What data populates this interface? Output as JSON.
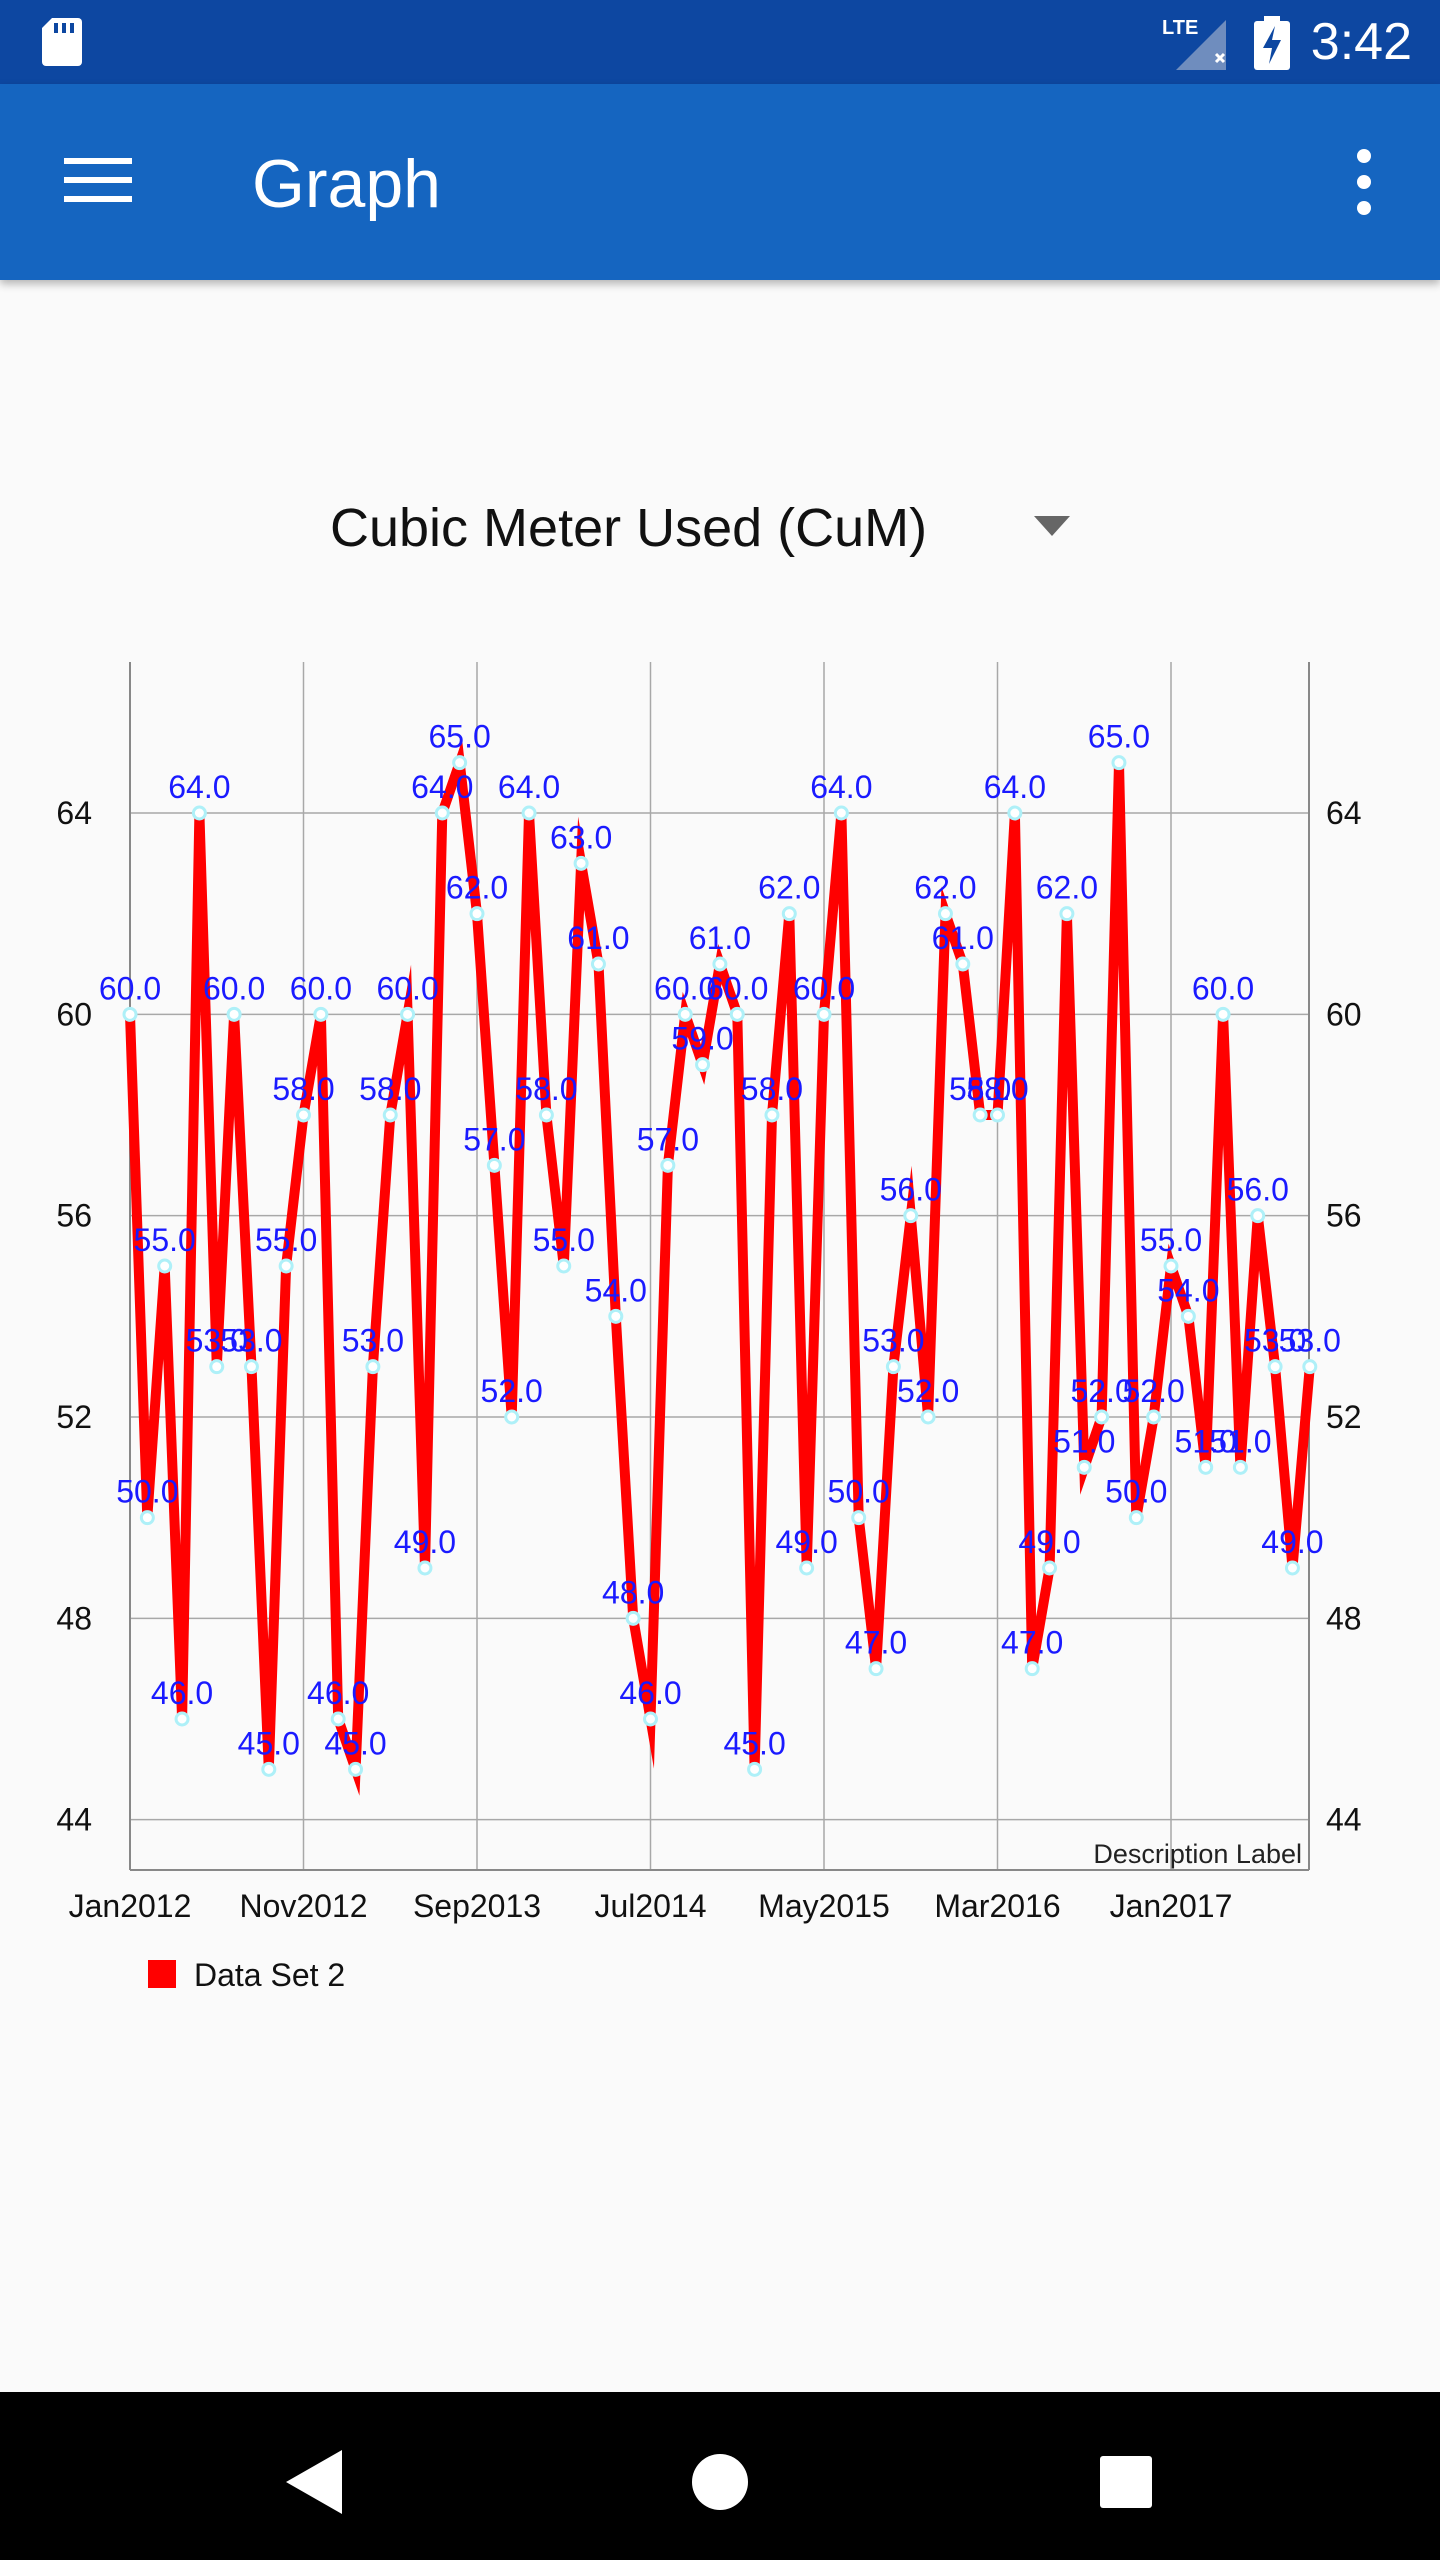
{
  "status_bar": {
    "time": "3:42",
    "network": "LTE"
  },
  "app_bar": {
    "title": "Graph"
  },
  "spinner": {
    "selected": "Cubic Meter Used (CuM)"
  },
  "colors": {
    "status_bar": "#0d47a1",
    "app_bar": "#1565c0",
    "line": "#ff0000",
    "value_label": "#1a1aff",
    "point": "#aef0f8"
  },
  "chart_data": {
    "type": "line",
    "x_tick_labels": [
      "Jan2012",
      "Nov2012",
      "Sep2013",
      "Jul2014",
      "May2015",
      "Mar2016",
      "Jan2017"
    ],
    "y_ticks": [
      44,
      48,
      52,
      56,
      60,
      64
    ],
    "ylim": [
      43,
      67
    ],
    "grid": true,
    "legend": "bottom-left",
    "description": "Description Label",
    "series": [
      {
        "name": "Data Set 2",
        "values": [
          60,
          50,
          55,
          46,
          64,
          53,
          60,
          53,
          45,
          55,
          58,
          60,
          46,
          45,
          53,
          58,
          60,
          49,
          64,
          65,
          62,
          57,
          52,
          64,
          58,
          55,
          63,
          61,
          54,
          48,
          46,
          57,
          60,
          59,
          61,
          60,
          45,
          58,
          62,
          49,
          60,
          64,
          50,
          47,
          53,
          56,
          52,
          62,
          61,
          58,
          58,
          64,
          47,
          49,
          62,
          51,
          52,
          65,
          50,
          52,
          55,
          54,
          51,
          60,
          51,
          56,
          53,
          49,
          53
        ],
        "labels": [
          "60.0",
          "50.0",
          "55.0",
          "46.0",
          "64.0",
          "53.0",
          "60.0",
          "53.0",
          "45.0",
          "55.0",
          "58.0",
          "60.0",
          "46.0",
          "45.0",
          "53.0",
          "58.0",
          "60.0",
          "49.0",
          "64.0",
          "65.0",
          "62.0",
          "57.0",
          "52.0",
          "64.0",
          "58.0",
          "55.0",
          "63.0",
          "61.0",
          "54.0",
          "48.0",
          "46.0",
          "57.0",
          "60.0",
          "59.0",
          "61.0",
          "60.0",
          "45.0",
          "58.0",
          "62.0",
          "49.0",
          "60.0",
          "64.0",
          "50.0",
          "47.0",
          "53.0",
          "56.0",
          "52.0",
          "62.0",
          "61.0",
          "58.0",
          "58.0",
          "64.0",
          "47.0",
          "49.0",
          "62.0",
          "51.0",
          "52.0",
          "65.0",
          "50.0",
          "52.0",
          "55.0",
          "54.0",
          "51.0",
          "60.0",
          "51.0",
          "56.0",
          "53.0",
          "49.0",
          "53.0"
        ]
      }
    ]
  }
}
